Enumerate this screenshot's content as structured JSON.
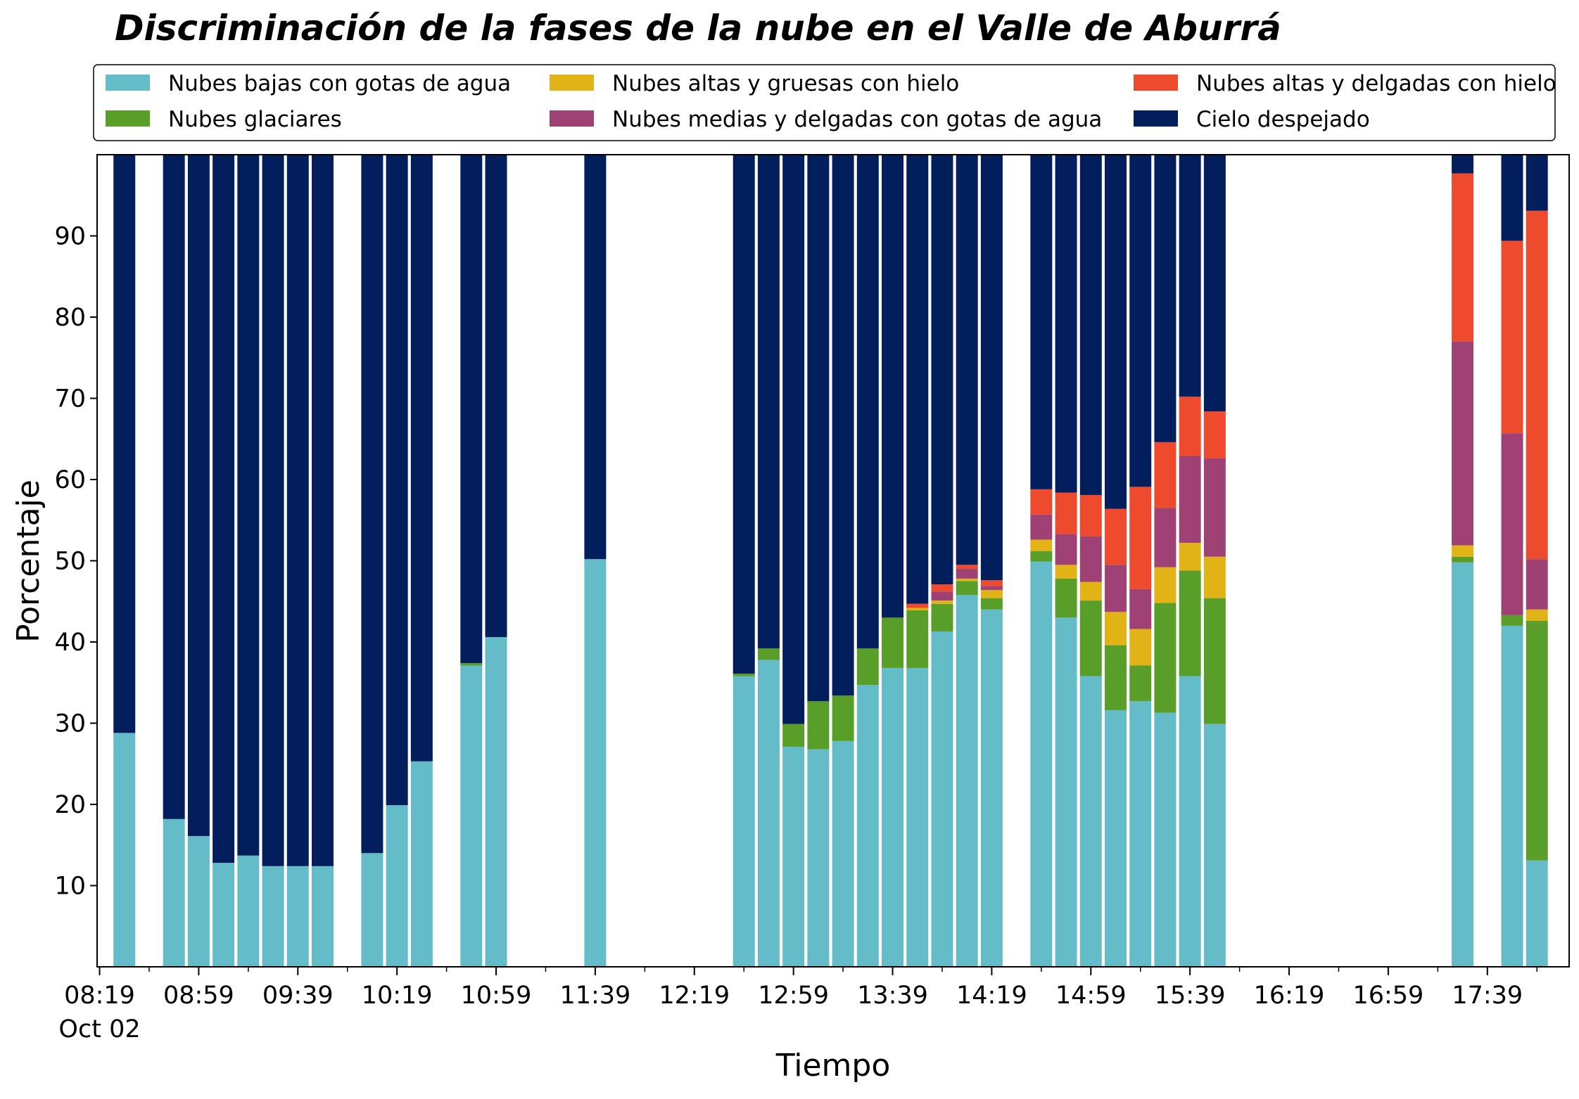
{
  "chart_data": {
    "type": "bar",
    "stacked": true,
    "title": "Discriminación de la fases de la nube en el Valle de Aburrá",
    "xlabel": "Tiempo",
    "ylabel": "Porcentaje",
    "ylim": [
      0,
      100
    ],
    "yticks": [
      10,
      20,
      30,
      40,
      50,
      60,
      70,
      80,
      90
    ],
    "xticks": [
      "08:19",
      "08:59",
      "09:39",
      "10:19",
      "10:59",
      "11:39",
      "12:19",
      "12:59",
      "13:39",
      "14:19",
      "14:59",
      "15:39",
      "16:19",
      "16:59",
      "17:39"
    ],
    "xtick_sublabel": "Oct 02",
    "xtick_minutes": [
      499,
      539,
      579,
      619,
      659,
      699,
      739,
      779,
      819,
      859,
      899,
      939,
      979,
      1019,
      1059
    ],
    "xlim_minutes": [
      498,
      1092
    ],
    "legend_placement": "top",
    "grid": false,
    "bars": [
      {
        "t": "08:29",
        "values": [
          28.8,
          0,
          0,
          0,
          0,
          71.2
        ]
      },
      {
        "t": "08:49",
        "values": [
          18.2,
          0,
          0,
          0,
          0,
          81.8
        ]
      },
      {
        "t": "08:59",
        "values": [
          16.1,
          0,
          0,
          0,
          0,
          83.9
        ]
      },
      {
        "t": "09:09",
        "values": [
          12.8,
          0,
          0,
          0,
          0,
          87.2
        ]
      },
      {
        "t": "09:19",
        "values": [
          13.7,
          0,
          0,
          0,
          0,
          86.3
        ]
      },
      {
        "t": "09:29",
        "values": [
          12.4,
          0,
          0,
          0,
          0,
          87.6
        ]
      },
      {
        "t": "09:39",
        "values": [
          12.4,
          0,
          0,
          0,
          0,
          87.6
        ]
      },
      {
        "t": "09:49",
        "values": [
          12.4,
          0,
          0,
          0,
          0,
          87.6
        ]
      },
      {
        "t": "10:09",
        "values": [
          14.0,
          0,
          0,
          0,
          0,
          86.0
        ]
      },
      {
        "t": "10:19",
        "values": [
          19.9,
          0,
          0,
          0,
          0,
          80.1
        ]
      },
      {
        "t": "10:29",
        "values": [
          25.3,
          0,
          0,
          0,
          0,
          74.7
        ]
      },
      {
        "t": "10:49",
        "values": [
          37.1,
          0.3,
          0,
          0,
          0,
          62.6
        ]
      },
      {
        "t": "10:59",
        "values": [
          40.6,
          0,
          0,
          0,
          0,
          59.4
        ]
      },
      {
        "t": "11:39",
        "values": [
          50.2,
          0,
          0,
          0,
          0,
          49.8
        ]
      },
      {
        "t": "12:39",
        "values": [
          35.8,
          0.3,
          0,
          0,
          0,
          63.9
        ]
      },
      {
        "t": "12:49",
        "values": [
          37.8,
          1.4,
          0,
          0,
          0,
          60.8
        ]
      },
      {
        "t": "12:59",
        "values": [
          27.1,
          2.8,
          0,
          0,
          0,
          70.1
        ]
      },
      {
        "t": "13:09",
        "values": [
          26.8,
          5.9,
          0,
          0,
          0,
          67.3
        ]
      },
      {
        "t": "13:19",
        "values": [
          27.8,
          5.6,
          0,
          0,
          0,
          66.6
        ]
      },
      {
        "t": "13:29",
        "values": [
          34.7,
          4.5,
          0,
          0,
          0,
          60.8
        ]
      },
      {
        "t": "13:39",
        "values": [
          36.8,
          6.2,
          0,
          0,
          0,
          57.0
        ]
      },
      {
        "t": "13:49",
        "values": [
          36.8,
          7.1,
          0.3,
          0,
          0.5,
          55.3
        ]
      },
      {
        "t": "13:59",
        "values": [
          41.3,
          3.4,
          0.4,
          1.1,
          0.9,
          52.9
        ]
      },
      {
        "t": "14:09",
        "values": [
          45.8,
          1.7,
          0.3,
          1.2,
          0.5,
          50.5
        ]
      },
      {
        "t": "14:19",
        "values": [
          44.0,
          1.4,
          1.0,
          0.5,
          0.7,
          52.4
        ]
      },
      {
        "t": "14:39",
        "values": [
          49.9,
          1.3,
          1.4,
          3.1,
          3.1,
          41.2
        ]
      },
      {
        "t": "14:49",
        "values": [
          43.0,
          4.8,
          1.7,
          3.8,
          5.1,
          41.6
        ]
      },
      {
        "t": "14:59",
        "values": [
          35.8,
          9.3,
          2.3,
          5.6,
          5.1,
          41.9
        ]
      },
      {
        "t": "15:09",
        "values": [
          31.6,
          8.0,
          4.1,
          5.8,
          6.9,
          43.6
        ]
      },
      {
        "t": "15:19",
        "values": [
          32.7,
          4.4,
          4.5,
          4.9,
          12.6,
          40.9
        ]
      },
      {
        "t": "15:29",
        "values": [
          31.3,
          13.5,
          4.4,
          7.3,
          8.1,
          35.4
        ]
      },
      {
        "t": "15:39",
        "values": [
          35.8,
          13.0,
          3.4,
          10.7,
          7.3,
          29.8
        ]
      },
      {
        "t": "15:49",
        "values": [
          29.9,
          15.5,
          5.1,
          12.1,
          5.8,
          31.6
        ]
      },
      {
        "t": "17:29",
        "values": [
          49.8,
          0.7,
          1.4,
          25.1,
          20.7,
          2.3
        ]
      },
      {
        "t": "17:49",
        "values": [
          42.0,
          1.3,
          0,
          22.4,
          23.7,
          10.6
        ]
      },
      {
        "t": "17:59",
        "values": [
          13.1,
          29.5,
          1.4,
          6.2,
          42.9,
          6.9
        ]
      }
    ],
    "series": [
      {
        "name": "Nubes bajas con gotas de agua",
        "color": "#64bcc8"
      },
      {
        "name": "Nubes glaciares",
        "color": "#5a9e2a"
      },
      {
        "name": "Nubes altas y gruesas con hielo",
        "color": "#e2b317"
      },
      {
        "name": "Nubes medias y delgadas con gotas de agua",
        "color": "#a04176"
      },
      {
        "name": "Nubes altas y delgadas con hielo",
        "color": "#ee4a2d"
      },
      {
        "name": "Cielo despejado",
        "color": "#031e5d"
      }
    ],
    "legend_order": [
      0,
      2,
      4,
      1,
      3,
      5
    ]
  }
}
